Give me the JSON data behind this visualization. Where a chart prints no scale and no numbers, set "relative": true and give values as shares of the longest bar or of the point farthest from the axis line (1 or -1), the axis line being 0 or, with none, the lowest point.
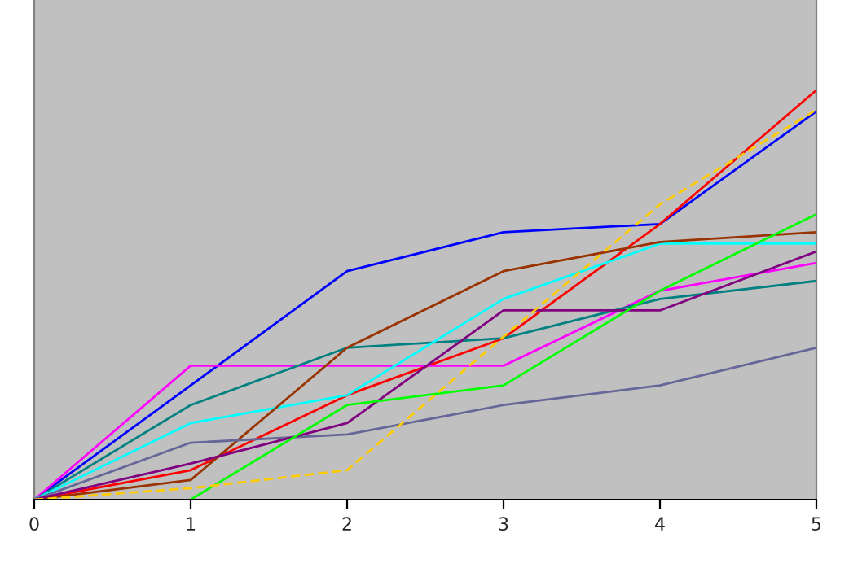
{
  "chart_data": {
    "type": "line",
    "relative": true,
    "x": [
      0,
      1,
      2,
      3,
      4,
      5
    ],
    "xlim": [
      0,
      5
    ],
    "xticks": [
      0,
      1,
      2,
      3,
      4,
      5
    ],
    "tick_labels": "x",
    "grid": false,
    "legend": false,
    "marker": "none",
    "series": [
      {
        "color": "#0000ff",
        "values": [
          0,
          0.279,
          0.558,
          0.653,
          0.673,
          0.948
        ]
      },
      {
        "color": "#ff0000",
        "values": [
          0,
          0.072,
          0.255,
          0.394,
          0.673,
          1
        ]
      },
      {
        "color": "#ff00ff",
        "values": [
          0,
          0.327,
          0.327,
          0.327,
          0.51,
          0.578
        ]
      },
      {
        "color": "#008080",
        "values": [
          0,
          0.231,
          0.371,
          0.394,
          0.49,
          0.534
        ]
      },
      {
        "color": "#00ffff",
        "values": [
          0,
          0.187,
          0.255,
          0.49,
          0.625,
          0.625
        ]
      },
      {
        "color": "#993300",
        "values": [
          0,
          0.048,
          0.371,
          0.558,
          0.629,
          0.653
        ]
      },
      {
        "color": "#666699",
        "values": [
          0,
          0.139,
          0.159,
          0.231,
          0.279,
          0.371
        ]
      },
      {
        "color": "#800080",
        "values": [
          0,
          0.088,
          0.187,
          0.462,
          0.462,
          0.606
        ]
      },
      {
        "color": "#00ff00",
        "values": [
          null,
          0,
          0.231,
          0.279,
          0.51,
          0.697
        ]
      },
      {
        "color": "#ffcc00",
        "line_style": "dashed",
        "values": [
          0,
          0.028,
          0.072,
          0.398,
          0.721,
          0.952
        ]
      }
    ]
  }
}
